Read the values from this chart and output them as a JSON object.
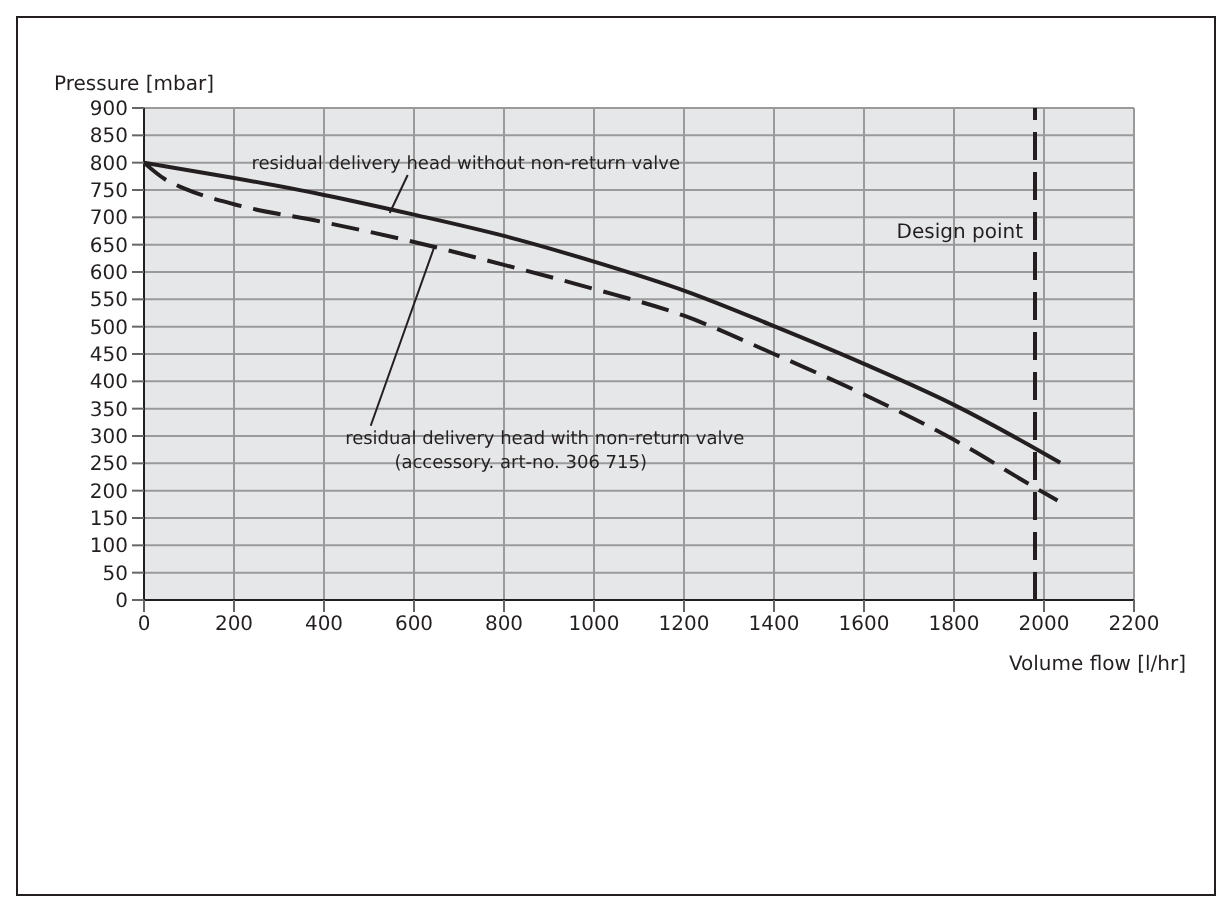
{
  "chart_data": {
    "type": "line",
    "xlabel": "Volume flow [l/hr]",
    "ylabel": "Pressure [mbar]",
    "xlim": [
      0,
      2200
    ],
    "xticks": [
      0,
      200,
      400,
      600,
      800,
      1000,
      1200,
      1400,
      1600,
      1800,
      2000,
      2200
    ],
    "ylim": [
      0,
      900
    ],
    "yticks": [
      0,
      50,
      100,
      150,
      200,
      250,
      300,
      350,
      400,
      450,
      500,
      550,
      600,
      650,
      700,
      750,
      800,
      850,
      900
    ],
    "grid": true,
    "marker": "none",
    "series": [
      {
        "color": "#231f20",
        "line_style": "solid",
        "x": [
          0,
          200,
          400,
          600,
          800,
          1000,
          1200,
          1400,
          1600,
          1800,
          2000,
          2036
        ],
        "values": [
          800,
          772,
          741,
          705,
          666,
          619,
          566,
          501,
          432,
          357,
          268,
          251
        ]
      },
      {
        "color": "#231f20",
        "line_style": "dashed",
        "x": [
          0,
          46,
          89,
          200,
          400,
          600,
          800,
          1000,
          1200,
          1400,
          1600,
          1800,
          2000,
          2030
        ],
        "values": [
          800,
          770,
          753,
          724,
          691,
          655,
          613,
          569,
          520,
          450,
          376,
          293,
          196,
          182
        ]
      }
    ],
    "ref_lines": [
      {
        "axis": "x",
        "value": 1980,
        "label": "Design point",
        "line_style": "dashed",
        "color": "#231f20"
      }
    ],
    "annotations": [
      {
        "text": "residual delivery head without non-return valve",
        "x": 546,
        "y": 708
      },
      {
        "text": "residual delivery head with non-return valve\n(accessory. art-no. 306 715)",
        "x": 646,
        "y": 648
      }
    ]
  }
}
